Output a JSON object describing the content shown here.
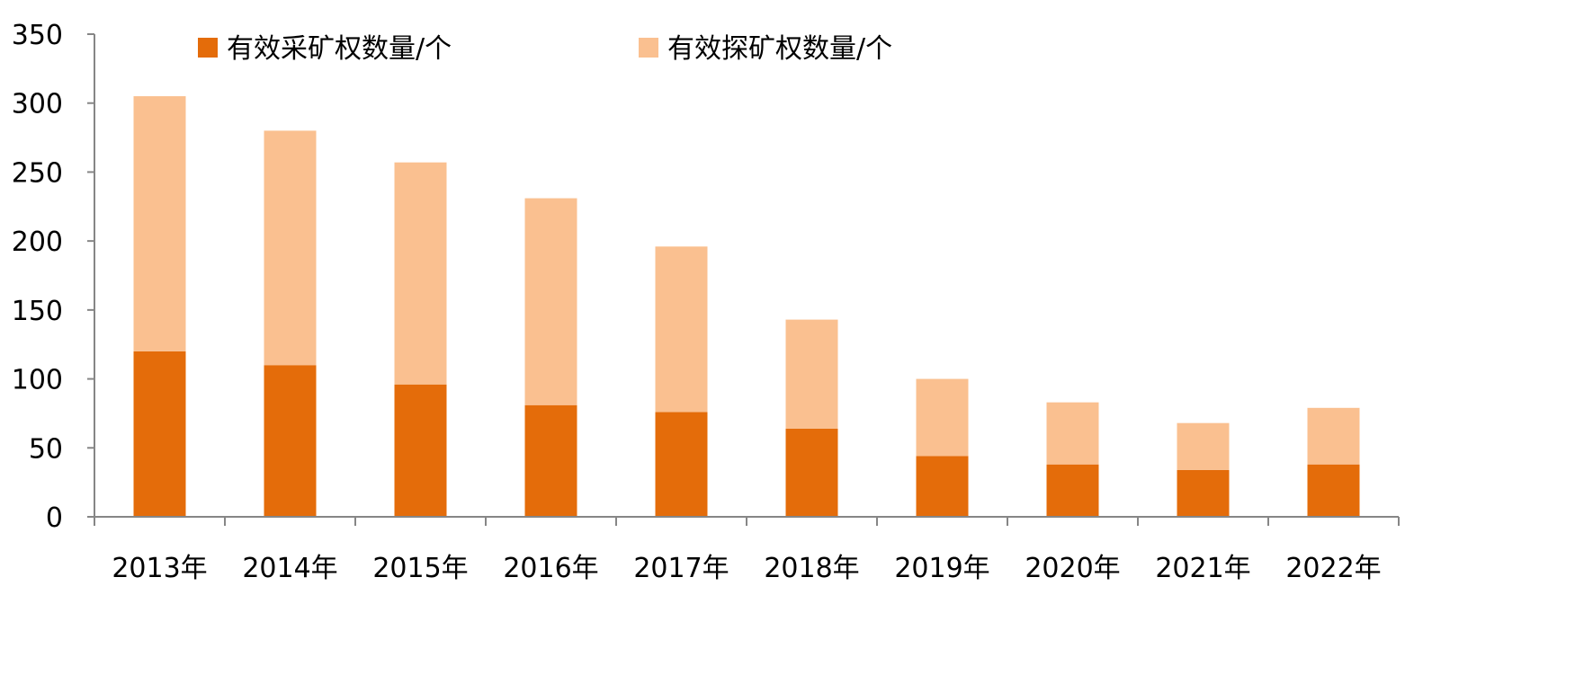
{
  "chart_data": {
    "type": "bar",
    "stacked": true,
    "title": "",
    "xlabel": "",
    "ylabel": "",
    "ylim": [
      0,
      350
    ],
    "yticks": [
      0,
      50,
      100,
      150,
      200,
      250,
      300,
      350
    ],
    "grid": false,
    "legend_position": "top",
    "categories": [
      "2013年",
      "2014年",
      "2015年",
      "2016年",
      "2017年",
      "2018年",
      "2019年",
      "2020年",
      "2021年",
      "2022年"
    ],
    "series": [
      {
        "name": "有效采矿权数量/个",
        "color": "#E46C0A",
        "values": [
          120,
          110,
          96,
          81,
          76,
          64,
          44,
          38,
          34,
          38
        ]
      },
      {
        "name": "有效探矿权数量/个",
        "color": "#FAC090",
        "values": [
          185,
          170,
          161,
          150,
          120,
          79,
          56,
          45,
          34,
          41
        ]
      }
    ]
  }
}
